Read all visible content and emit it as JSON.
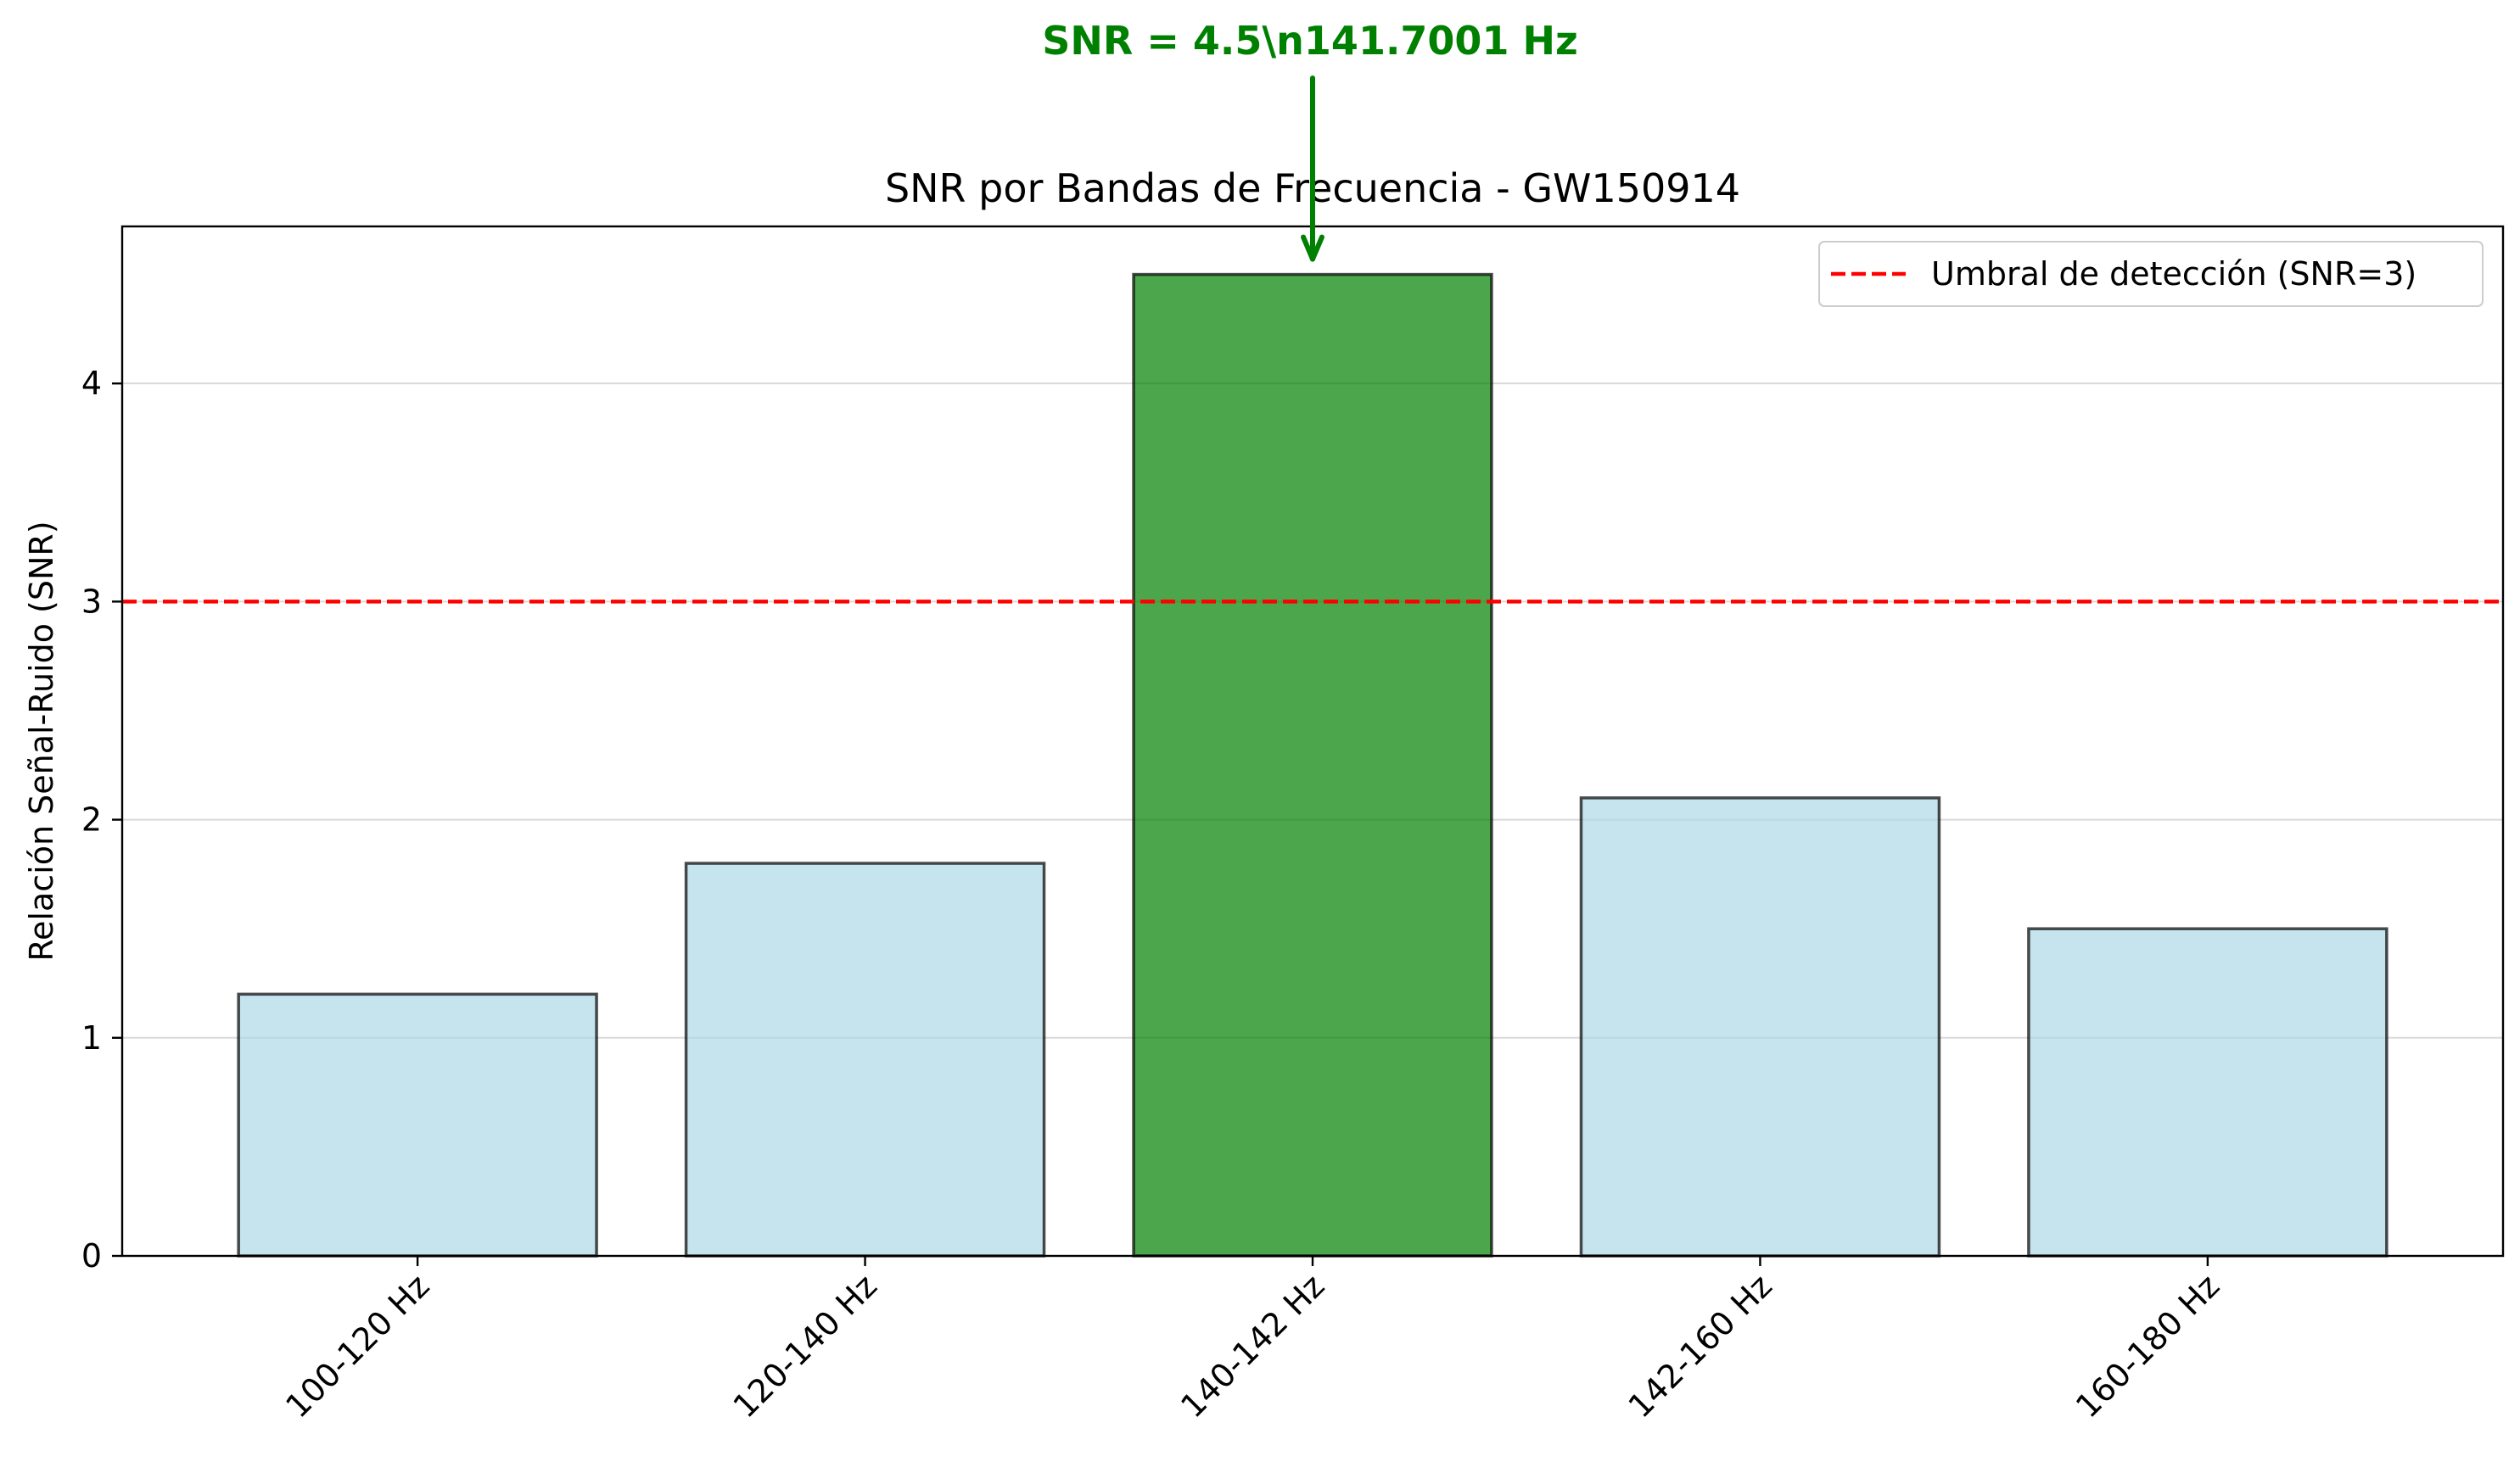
{
  "chart_data": {
    "type": "bar",
    "title": "SNR por Bandas de Frecuencia - GW150914",
    "xlabel": "",
    "ylabel": "Relación Señal-Ruido (SNR)",
    "categories": [
      "100-120 Hz",
      "120-140 Hz",
      "140-142 Hz",
      "142-160 Hz",
      "160-180 Hz"
    ],
    "values": [
      1.2,
      1.8,
      4.5,
      2.1,
      1.5
    ],
    "highlight_index": 2,
    "ylim": [
      0,
      4.72
    ],
    "yticks": [
      0,
      1,
      2,
      3,
      4
    ],
    "grid": "y",
    "threshold": {
      "value": 3,
      "label": "Umbral de detección (SNR=3)",
      "color": "#ff0000",
      "style": "dashed"
    },
    "legend": {
      "placement": "upper right"
    },
    "annotation": {
      "text": "SNR = 4.5\\n141.7001 Hz",
      "target_index": 2,
      "target_value": 4.5,
      "color": "#008000"
    },
    "colors": {
      "bar": "#add8e6",
      "highlight": "#008000",
      "edge": "#000000"
    }
  }
}
